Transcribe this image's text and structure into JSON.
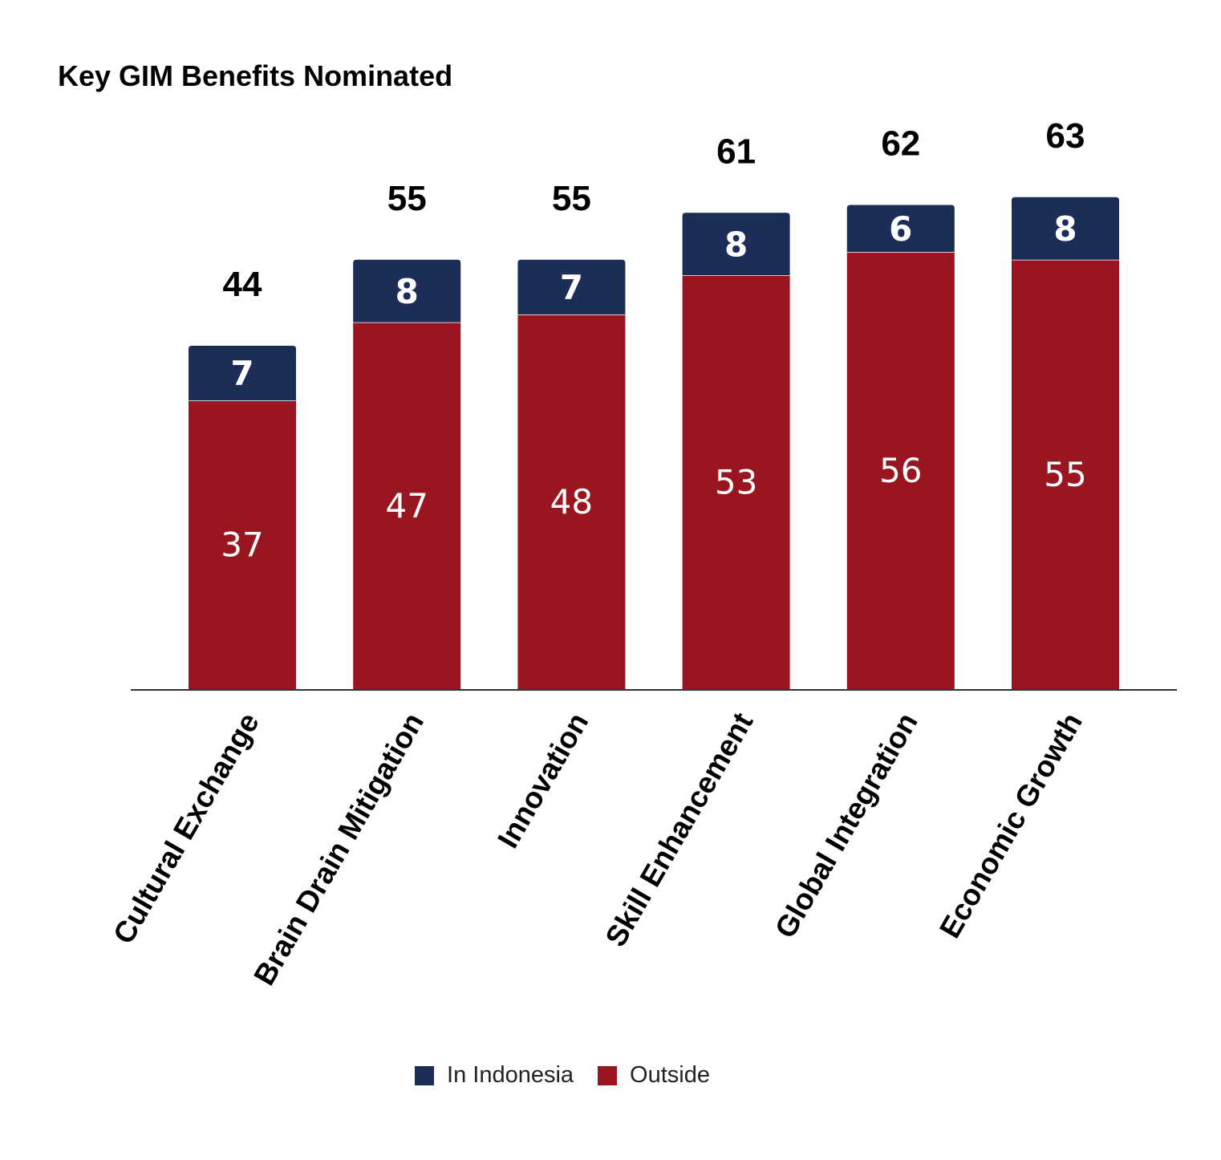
{
  "chart_data": {
    "type": "bar",
    "stacked": true,
    "title": "Key GIM Benefits Nominated",
    "categories": [
      "Cultural Exchange",
      "Brain Drain Mitigation",
      "Innovation",
      "Skill Enhancement",
      "Global Integration",
      "Economic Growth"
    ],
    "series": [
      {
        "name": "Outside",
        "color": "#99151f",
        "values": [
          37,
          47,
          48,
          53,
          56,
          55
        ]
      },
      {
        "name": "In Indonesia",
        "color": "#1c2d57",
        "values": [
          7,
          8,
          7,
          8,
          6,
          8
        ]
      }
    ],
    "totals": [
      44,
      55,
      55,
      61,
      62,
      63
    ],
    "ylim": [
      0,
      65
    ],
    "grid": false,
    "legend_position": "bottom"
  },
  "legend": {
    "in_indonesia_label": "In Indonesia",
    "outside_label": "Outside"
  }
}
